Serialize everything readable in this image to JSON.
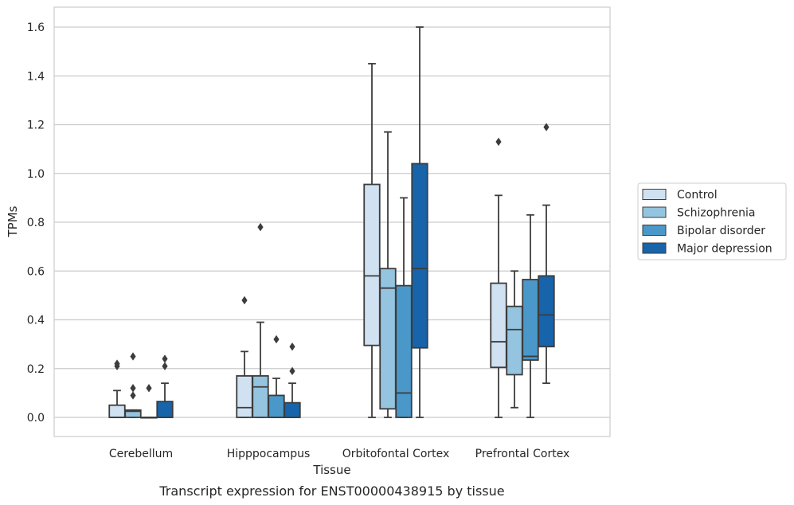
{
  "chart_data": {
    "type": "box",
    "xlabel": "Tissue",
    "ylabel": "TPMs",
    "caption": "Transcript expression for ENST00000438915 by tissue",
    "ylim": [
      -0.08,
      1.68
    ],
    "yticks": [
      0.0,
      0.2,
      0.4,
      0.6,
      0.8,
      1.0,
      1.2,
      1.4,
      1.6
    ],
    "ytick_labels": [
      "0.0",
      "0.2",
      "0.4",
      "0.6",
      "0.8",
      "1.0",
      "1.2",
      "1.4",
      "1.6"
    ],
    "grid": true,
    "legend_position": "right",
    "categories": [
      "Cerebellum",
      "Hipppocampus",
      "Orbitofontal Cortex",
      "Prefrontal Cortex"
    ],
    "series": [
      {
        "name": "Control",
        "color": "#d0e1f2",
        "boxes": [
          {
            "whisker_low": 0.0,
            "q1": 0.0,
            "median": 0.0,
            "q3": 0.05,
            "whisker_high": 0.11,
            "outliers": [
              0.21,
              0.22
            ]
          },
          {
            "whisker_low": 0.0,
            "q1": 0.0,
            "median": 0.04,
            "q3": 0.17,
            "whisker_high": 0.27,
            "outliers": [
              0.48
            ]
          },
          {
            "whisker_low": 0.0,
            "q1": 0.295,
            "median": 0.58,
            "q3": 0.955,
            "whisker_high": 1.45,
            "outliers": []
          },
          {
            "whisker_low": 0.0,
            "q1": 0.205,
            "median": 0.31,
            "q3": 0.55,
            "whisker_high": 0.91,
            "outliers": [
              1.13
            ]
          }
        ]
      },
      {
        "name": "Schizophrenia",
        "color": "#94c4df",
        "boxes": [
          {
            "whisker_low": 0.0,
            "q1": 0.0,
            "median": 0.025,
            "q3": 0.03,
            "whisker_high": 0.03,
            "outliers": [
              0.09,
              0.12,
              0.25
            ]
          },
          {
            "whisker_low": 0.0,
            "q1": 0.0,
            "median": 0.125,
            "q3": 0.17,
            "whisker_high": 0.39,
            "outliers": [
              0.78
            ]
          },
          {
            "whisker_low": 0.0,
            "q1": 0.035,
            "median": 0.53,
            "q3": 0.61,
            "whisker_high": 1.17,
            "outliers": []
          },
          {
            "whisker_low": 0.04,
            "q1": 0.175,
            "median": 0.36,
            "q3": 0.455,
            "whisker_high": 0.6,
            "outliers": []
          }
        ]
      },
      {
        "name": "Bipolar disorder",
        "color": "#4a98c9",
        "boxes": [
          {
            "whisker_low": 0.0,
            "q1": 0.0,
            "median": 0.0,
            "q3": 0.0,
            "whisker_high": 0.0,
            "outliers": [
              0.12
            ]
          },
          {
            "whisker_low": 0.0,
            "q1": 0.0,
            "median": 0.0,
            "q3": 0.09,
            "whisker_high": 0.16,
            "outliers": [
              0.32
            ]
          },
          {
            "whisker_low": 0.0,
            "q1": 0.0,
            "median": 0.1,
            "q3": 0.54,
            "whisker_high": 0.9,
            "outliers": []
          },
          {
            "whisker_low": 0.0,
            "q1": 0.235,
            "median": 0.25,
            "q3": 0.565,
            "whisker_high": 0.83,
            "outliers": []
          }
        ]
      },
      {
        "name": "Major depression",
        "color": "#1764ab",
        "boxes": [
          {
            "whisker_low": 0.0,
            "q1": 0.0,
            "median": 0.0,
            "q3": 0.065,
            "whisker_high": 0.14,
            "outliers": [
              0.21,
              0.24
            ]
          },
          {
            "whisker_low": 0.0,
            "q1": 0.0,
            "median": 0.0,
            "q3": 0.06,
            "whisker_high": 0.14,
            "outliers": [
              0.19,
              0.29
            ]
          },
          {
            "whisker_low": 0.0,
            "q1": 0.285,
            "median": 0.61,
            "q3": 1.04,
            "whisker_high": 1.6,
            "outliers": []
          },
          {
            "whisker_low": 0.14,
            "q1": 0.29,
            "median": 0.42,
            "q3": 0.58,
            "whisker_high": 0.87,
            "outliers": [
              1.19
            ]
          }
        ]
      }
    ]
  }
}
